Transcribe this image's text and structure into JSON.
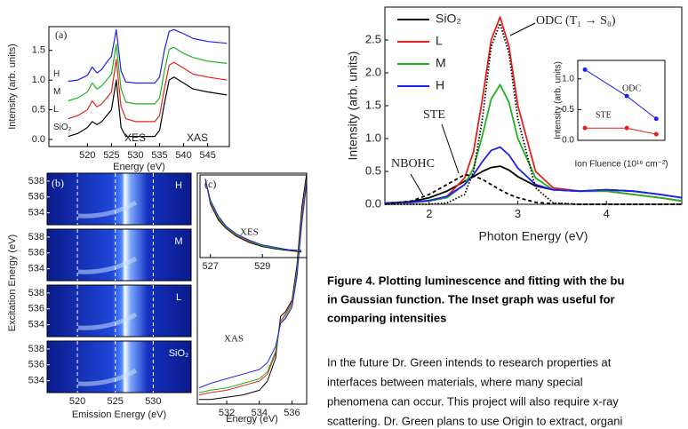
{
  "chart_data": [
    {
      "type": "line",
      "panel_label": "(a)",
      "xlabel": "Energy (eV)",
      "ylabel": "Intensity (arb. units)",
      "xlim": [
        512,
        549.5
      ],
      "xticks": [
        520,
        525,
        530,
        535,
        540,
        545
      ],
      "ylim": [
        -0.12,
        1.9
      ],
      "yticks": [
        {
          "value": 0,
          "label": "0.0"
        },
        {
          "value": 0.5,
          "label": "0.5"
        },
        {
          "value": 1,
          "label": "1.0"
        },
        {
          "value": 1.5,
          "label": "1.5"
        }
      ],
      "annotations": [
        "XES",
        "XAS"
      ],
      "x": [
        516,
        518,
        520,
        521,
        522,
        523,
        524,
        525,
        526,
        527,
        528,
        530,
        532,
        534,
        535,
        536,
        537,
        538,
        540,
        542,
        545,
        549
      ],
      "series": [
        {
          "name": "SiO₂",
          "color": "#000000",
          "values": [
            0.05,
            0.1,
            0.2,
            0.3,
            0.25,
            0.3,
            0.4,
            0.5,
            1.0,
            0.2,
            0.05,
            0.05,
            0.05,
            0.05,
            0.15,
            0.6,
            1.0,
            1.05,
            0.95,
            0.85,
            0.8,
            0.75
          ]
        },
        {
          "name": "L",
          "color": "#e8201c",
          "values": [
            0.35,
            0.4,
            0.5,
            0.65,
            0.55,
            0.6,
            0.7,
            0.8,
            1.35,
            0.55,
            0.35,
            0.3,
            0.3,
            0.3,
            0.4,
            0.85,
            1.25,
            1.3,
            1.2,
            1.1,
            1.05,
            1.0
          ]
        },
        {
          "name": "M",
          "color": "#1db31d",
          "values": [
            0.65,
            0.7,
            0.8,
            0.95,
            0.85,
            0.9,
            1.0,
            1.1,
            1.6,
            0.85,
            0.63,
            0.6,
            0.6,
            0.6,
            0.7,
            1.15,
            1.52,
            1.55,
            1.45,
            1.38,
            1.32,
            1.28
          ]
        },
        {
          "name": "H",
          "color": "#2020ee",
          "values": [
            0.98,
            1.0,
            1.08,
            1.22,
            1.12,
            1.18,
            1.3,
            1.4,
            1.85,
            1.15,
            0.97,
            0.95,
            0.95,
            0.95,
            1.05,
            1.5,
            1.82,
            1.85,
            1.78,
            1.7,
            1.65,
            1.62
          ]
        }
      ]
    },
    {
      "type": "line",
      "xlabel": "Photon Energy (eV)",
      "ylabel": "Intensity (arb. units)",
      "xlim": [
        1.5,
        4.85
      ],
      "xticks": [
        2,
        3,
        4
      ],
      "ylim": [
        0,
        3.0
      ],
      "yticks": [
        {
          "value": 0,
          "label": "0.0"
        },
        {
          "value": 0.5,
          "label": "0.5"
        },
        {
          "value": 1,
          "label": "1.0"
        },
        {
          "value": 1.5,
          "label": "1.5"
        },
        {
          "value": 2,
          "label": "2.0"
        },
        {
          "value": 2.5,
          "label": "2.5"
        }
      ],
      "legend": "upper left",
      "annotations": [
        "ODC (T₁ → S₀)",
        "STE",
        "NBOHC"
      ],
      "x": [
        1.5,
        1.8,
        2.0,
        2.2,
        2.4,
        2.5,
        2.6,
        2.7,
        2.8,
        2.9,
        3.0,
        3.2,
        3.4,
        3.7,
        4.0,
        4.3,
        4.6,
        4.85
      ],
      "series": [
        {
          "name": "SiO₂",
          "color": "#000000",
          "values": [
            0.02,
            0.04,
            0.1,
            0.2,
            0.35,
            0.42,
            0.5,
            0.56,
            0.58,
            0.52,
            0.42,
            0.28,
            0.22,
            0.2,
            0.22,
            0.2,
            0.15,
            0.1
          ]
        },
        {
          "name": "L",
          "color": "#e8201c",
          "values": [
            0.02,
            0.03,
            0.05,
            0.12,
            0.4,
            0.8,
            1.6,
            2.5,
            2.85,
            2.4,
            1.5,
            0.5,
            0.25,
            0.2,
            0.2,
            0.15,
            0.1,
            0.05
          ]
        },
        {
          "name": "M",
          "color": "#1db31d",
          "values": [
            0.02,
            0.03,
            0.05,
            0.1,
            0.3,
            0.55,
            1.05,
            1.6,
            1.82,
            1.55,
            1.0,
            0.4,
            0.22,
            0.2,
            0.2,
            0.15,
            0.1,
            0.05
          ]
        },
        {
          "name": "H",
          "color": "#2020ee",
          "values": [
            0.02,
            0.03,
            0.06,
            0.12,
            0.3,
            0.45,
            0.65,
            0.82,
            0.87,
            0.75,
            0.55,
            0.3,
            0.22,
            0.2,
            0.22,
            0.2,
            0.15,
            0.1
          ]
        },
        {
          "color": "#000000",
          "dash": "dotted",
          "values": [
            0,
            0,
            0,
            0.02,
            0.15,
            0.5,
            1.3,
            2.4,
            2.75,
            2.3,
            1.3,
            0.25,
            0.02,
            0,
            0,
            0,
            0,
            0
          ]
        },
        {
          "color": "#000000",
          "dash": "dashed",
          "values": [
            0,
            0.05,
            0.15,
            0.3,
            0.45,
            0.43,
            0.38,
            0.3,
            0.22,
            0.15,
            0.1,
            0.03,
            0.01,
            0,
            0,
            0,
            0,
            0
          ]
        }
      ]
    },
    {
      "type": "line",
      "xlabel": "Ion Fluence (10¹⁶ cm⁻²)",
      "ylabel": "Intensity (arb. units)",
      "xlog": true,
      "markers": true,
      "xlim": [
        0.5,
        30
      ],
      "ylim": [
        0,
        1.3
      ],
      "yticks": [
        {
          "value": 0,
          "label": "0.0"
        },
        {
          "value": 0.5,
          "label": "0.5"
        },
        {
          "value": 1,
          "label": "1.0"
        }
      ],
      "x": [
        0.7,
        5,
        20
      ],
      "series": [
        {
          "name": "ODC",
          "color": "#2020ee",
          "values": [
            1.15,
            0.72,
            0.35
          ]
        },
        {
          "name": "STE",
          "color": "#e8201c",
          "values": [
            0.2,
            0.2,
            0.1
          ]
        }
      ]
    },
    {
      "type": "line",
      "panel_label": "(c)",
      "annotations": [
        "XES"
      ],
      "xlim": [
        526.6,
        530.7
      ],
      "xticks": [
        527,
        529
      ],
      "ylim": [
        0,
        1.05
      ],
      "x": [
        526.8,
        527,
        527.3,
        527.6,
        528,
        528.5,
        529,
        529.5,
        530,
        530.5
      ],
      "series": [
        {
          "color": "#000000",
          "values": [
            1.0,
            0.68,
            0.48,
            0.37,
            0.27,
            0.19,
            0.14,
            0.11,
            0.09,
            0.07
          ]
        },
        {
          "color": "#e8201c",
          "values": [
            1.0,
            0.7,
            0.5,
            0.38,
            0.28,
            0.2,
            0.15,
            0.12,
            0.1,
            0.08
          ]
        },
        {
          "color": "#1db31d",
          "values": [
            1.0,
            0.71,
            0.51,
            0.39,
            0.29,
            0.21,
            0.15,
            0.12,
            0.1,
            0.08
          ]
        },
        {
          "color": "#2020ee",
          "values": [
            1.0,
            0.73,
            0.53,
            0.4,
            0.3,
            0.22,
            0.16,
            0.13,
            0.1,
            0.09
          ]
        }
      ]
    },
    {
      "type": "line",
      "xlabel": "Energy (eV)",
      "annotations": [
        "XAS"
      ],
      "xlim": [
        530.2,
        536.9
      ],
      "xticks": [
        532,
        534,
        536
      ],
      "ylim": [
        0,
        1.0
      ],
      "x": [
        530.3,
        531,
        532,
        533,
        534,
        534.5,
        535,
        535.3,
        535.6,
        536,
        536.3,
        536.6,
        536.9
      ],
      "series": [
        {
          "color": "#000000",
          "values": [
            0.02,
            0.02,
            0.03,
            0.04,
            0.06,
            0.1,
            0.2,
            0.38,
            0.4,
            0.45,
            0.6,
            0.85,
            1.0
          ]
        },
        {
          "color": "#e8201c",
          "values": [
            0.04,
            0.05,
            0.06,
            0.08,
            0.1,
            0.13,
            0.22,
            0.36,
            0.39,
            0.44,
            0.58,
            0.82,
            0.98
          ]
        },
        {
          "color": "#1db31d",
          "values": [
            0.05,
            0.06,
            0.07,
            0.09,
            0.11,
            0.14,
            0.23,
            0.35,
            0.38,
            0.43,
            0.57,
            0.8,
            0.97
          ]
        },
        {
          "color": "#2020ee",
          "values": [
            0.07,
            0.09,
            0.11,
            0.13,
            0.15,
            0.18,
            0.25,
            0.35,
            0.37,
            0.42,
            0.55,
            0.78,
            0.96
          ]
        }
      ]
    },
    {
      "type": "image",
      "panel_label": "(b)",
      "xlabel": "Emission Energy (eV)",
      "ylabel": "Excitation Energy (eV)",
      "xlim": [
        516,
        535
      ],
      "xticks": [
        520,
        525,
        530
      ],
      "ylim": [
        532.5,
        539
      ],
      "yticks": [
        534,
        536,
        538
      ],
      "panels": [
        "H",
        "M",
        "L",
        "SiO₂"
      ]
    }
  ],
  "caption": [
    "Figure 4. Plotting luminescence and fitting with the bu",
    "in Gaussian function. The Inset graph was useful for",
    "comparing intensities"
  ],
  "body": [
    "In the future Dr. Green intends to research properties at",
    "interfaces between materials, where many special",
    "phenomena can occur. This project will also require x-ray",
    "scattering. Dr. Green plans to use Origin to extract, organi"
  ]
}
